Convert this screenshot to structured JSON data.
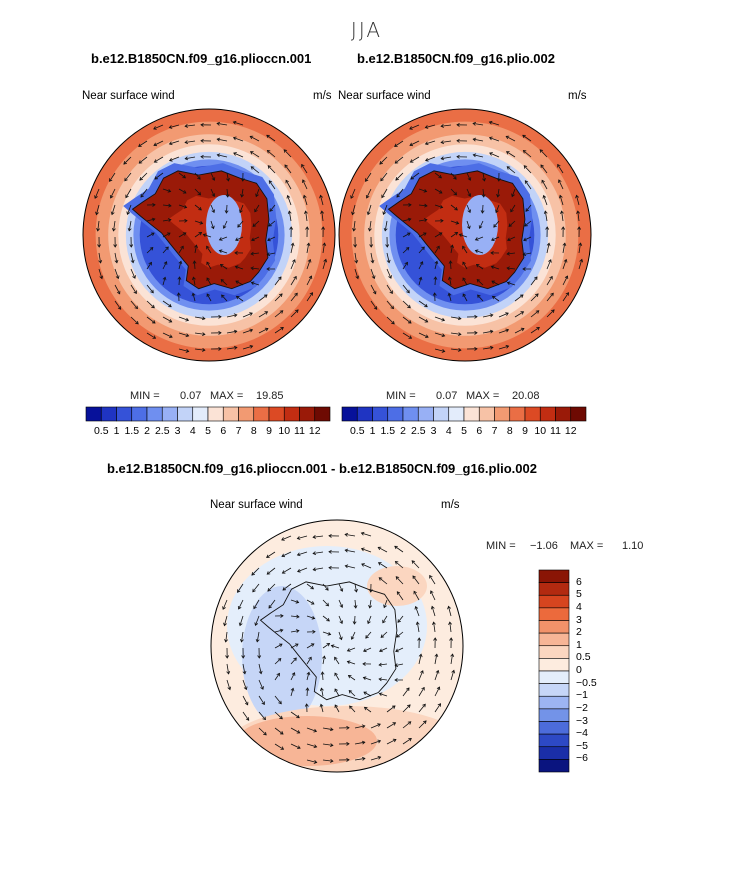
{
  "season": "JJA",
  "variable_label": "Near surface wind",
  "unit": "m/s",
  "panels": [
    {
      "case": "b.e12.B1850CN.f09_g16.plioccn.001",
      "min_label": "MIN =",
      "min": "0.07",
      "max_label": "MAX =",
      "max": "19.85"
    },
    {
      "case": "b.e12.B1850CN.f09_g16.plio.002",
      "min_label": "MIN =",
      "min": "0.07",
      "max_label": "MAX =",
      "max": "20.08"
    }
  ],
  "difference": {
    "title": "b.e12.B1850CN.f09_g16.plioccn.001 - b.e12.B1850CN.f09_g16.plio.002",
    "min_label": "MIN =",
    "min": "−1.06",
    "max_label": "MAX =",
    "max": "1.10"
  },
  "colorbar_levels": [
    "0.5",
    "1",
    "1.5",
    "2",
    "2.5",
    "3",
    "4",
    "5",
    "6",
    "7",
    "8",
    "9",
    "10",
    "11",
    "12"
  ],
  "colorbar_colors": [
    "#07119a",
    "#1f34c2",
    "#3552d8",
    "#4d6ee6",
    "#6f8ff0",
    "#98b0f5",
    "#c2d3f8",
    "#e3ecfb",
    "#fbe3d6",
    "#f7c2a6",
    "#f29a72",
    "#ea6e45",
    "#dc4a24",
    "#c22d12",
    "#9a1a08",
    "#6e0a02"
  ],
  "diff_colorbar_levels": [
    "6",
    "5",
    "4",
    "3",
    "2",
    "1",
    "0.5",
    "0",
    "−0.5",
    "−1",
    "−2",
    "−3",
    "−4",
    "−5",
    "−6"
  ],
  "diff_colorbar_colors": [
    "#8a1505",
    "#b22a10",
    "#d6451f",
    "#ec6a3c",
    "#f2926a",
    "#f7b596",
    "#fbd6c0",
    "#fdecdf",
    "#e4eefb",
    "#c6d6f7",
    "#9db5f2",
    "#7393e8",
    "#4c6cdb",
    "#2d49c5",
    "#1a2ea8",
    "#0a147f"
  ]
}
